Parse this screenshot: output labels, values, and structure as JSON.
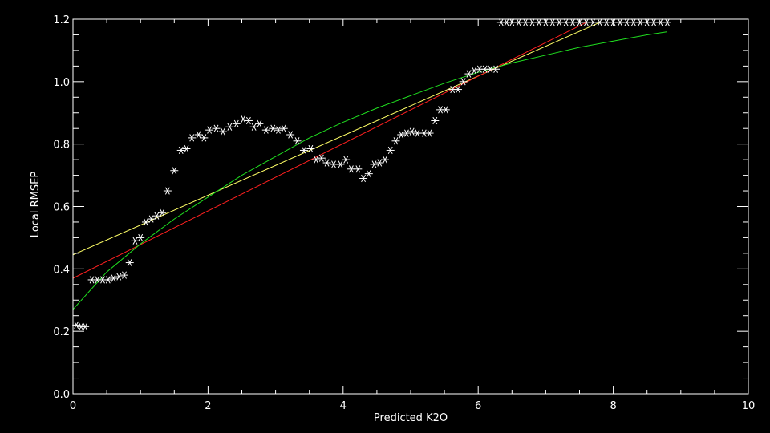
{
  "chart_data": {
    "type": "scatter",
    "title": "",
    "xlabel": "Predicted K2O",
    "ylabel": "Local RMSEP",
    "xlim": [
      0,
      10
    ],
    "ylim": [
      0,
      1.2
    ],
    "x_major_ticks": [
      0,
      2,
      4,
      6,
      8,
      10
    ],
    "x_tick_labels": [
      "0",
      "2",
      "4",
      "6",
      "8",
      "10"
    ],
    "y_major_ticks": [
      0.0,
      0.2,
      0.4,
      0.6,
      0.8,
      1.0,
      1.2
    ],
    "y_tick_labels": [
      "0.0",
      "0.2",
      "0.4",
      "0.6",
      "0.8",
      "1.0",
      "1.2"
    ],
    "grid": false,
    "legend": "none",
    "background": "#000000",
    "foreground": "#ffffff",
    "series": [
      {
        "kind": "scatter",
        "marker": "asterisk",
        "color": "#ffffff",
        "x": [
          0.05,
          0.12,
          0.18,
          0.28,
          0.36,
          0.44,
          0.52,
          0.6,
          0.68,
          0.76,
          0.84,
          0.92,
          1.0,
          1.08,
          1.16,
          1.24,
          1.32,
          1.4,
          1.5,
          1.6,
          1.68,
          1.76,
          1.86,
          1.94,
          2.02,
          2.12,
          2.22,
          2.32,
          2.42,
          2.52,
          2.6,
          2.68,
          2.76,
          2.86,
          2.96,
          3.04,
          3.12,
          3.22,
          3.32,
          3.42,
          3.52,
          3.6,
          3.68,
          3.76,
          3.86,
          3.96,
          4.04,
          4.12,
          4.22,
          4.3,
          4.38,
          4.46,
          4.54,
          4.62,
          4.7,
          4.78,
          4.86,
          4.94,
          5.02,
          5.1,
          5.2,
          5.28,
          5.36,
          5.44,
          5.52,
          5.62,
          5.7,
          5.78,
          5.86,
          5.94,
          6.02,
          6.1,
          6.18,
          6.26,
          6.34,
          6.42,
          6.5,
          6.6,
          6.7,
          6.8,
          6.9,
          7.0,
          7.1,
          7.2,
          7.3,
          7.4,
          7.5,
          7.6,
          7.7,
          7.8,
          7.9,
          8.0,
          8.1,
          8.2,
          8.3,
          8.4,
          8.5,
          8.6,
          8.7,
          8.8
        ],
        "y": [
          0.22,
          0.215,
          0.215,
          0.365,
          0.365,
          0.365,
          0.365,
          0.37,
          0.375,
          0.38,
          0.42,
          0.49,
          0.5,
          0.55,
          0.56,
          0.57,
          0.58,
          0.65,
          0.715,
          0.78,
          0.785,
          0.82,
          0.83,
          0.82,
          0.845,
          0.85,
          0.84,
          0.855,
          0.865,
          0.88,
          0.875,
          0.855,
          0.865,
          0.845,
          0.85,
          0.845,
          0.85,
          0.83,
          0.81,
          0.78,
          0.785,
          0.75,
          0.755,
          0.74,
          0.735,
          0.735,
          0.75,
          0.72,
          0.72,
          0.69,
          0.705,
          0.735,
          0.74,
          0.75,
          0.78,
          0.81,
          0.83,
          0.835,
          0.84,
          0.835,
          0.835,
          0.835,
          0.875,
          0.91,
          0.91,
          0.975,
          0.975,
          1.0,
          1.025,
          1.035,
          1.04,
          1.04,
          1.04,
          1.04,
          1.19,
          1.19,
          1.19,
          1.19,
          1.19,
          1.19,
          1.19,
          1.19,
          1.19,
          1.19,
          1.19,
          1.19,
          1.19,
          1.19,
          1.19,
          1.19,
          1.19,
          1.19,
          1.19,
          1.19,
          1.19,
          1.19,
          1.19,
          1.19,
          1.19,
          1.19
        ]
      },
      {
        "kind": "line",
        "color": "#ffff66",
        "x": [
          0.0,
          7.8
        ],
        "y": [
          0.445,
          1.19
        ]
      },
      {
        "kind": "line",
        "color": "#ff2020",
        "x": [
          0.0,
          7.6
        ],
        "y": [
          0.37,
          1.19
        ]
      },
      {
        "kind": "line",
        "color": "#20e020",
        "x": [
          0.0,
          0.5,
          1.0,
          1.5,
          2.0,
          2.5,
          3.0,
          3.5,
          4.0,
          4.5,
          5.0,
          5.5,
          6.0,
          6.5,
          7.0,
          7.5,
          8.0,
          8.5,
          8.8
        ],
        "y": [
          0.27,
          0.39,
          0.48,
          0.56,
          0.63,
          0.7,
          0.76,
          0.82,
          0.87,
          0.915,
          0.955,
          0.995,
          1.03,
          1.06,
          1.085,
          1.11,
          1.13,
          1.15,
          1.16
        ]
      }
    ]
  }
}
